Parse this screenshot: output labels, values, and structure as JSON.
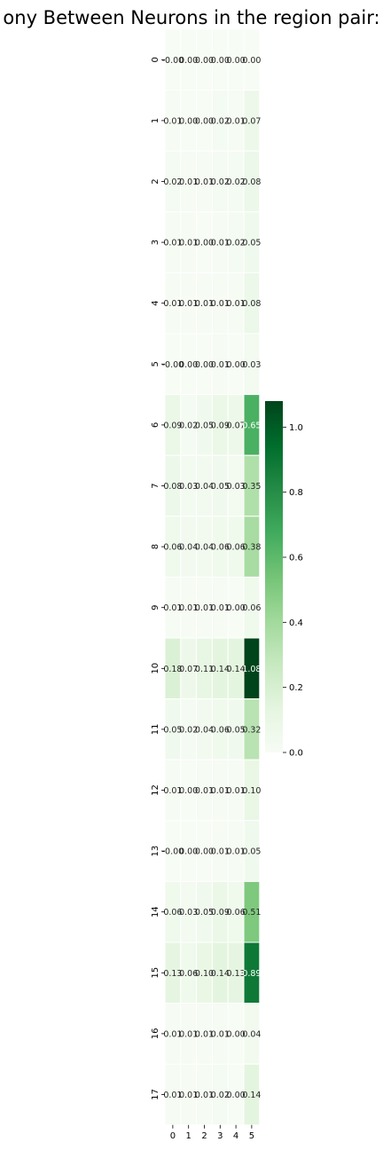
{
  "chart_data": {
    "type": "heatmap",
    "title": "ony Between Neurons in the region pair:",
    "xlabel": "",
    "ylabel": "",
    "x_categories": [
      "0",
      "1",
      "2",
      "3",
      "4",
      "5"
    ],
    "y_categories": [
      "0",
      "1",
      "2",
      "3",
      "4",
      "5",
      "6",
      "7",
      "8",
      "9",
      "10",
      "11",
      "12",
      "13",
      "14",
      "15",
      "16",
      "17"
    ],
    "values": [
      [
        0.0,
        0.0,
        0.0,
        0.0,
        0.0,
        0.0
      ],
      [
        0.01,
        0.0,
        0.0,
        0.02,
        0.01,
        0.07
      ],
      [
        0.02,
        0.01,
        0.01,
        0.02,
        0.02,
        0.08
      ],
      [
        0.01,
        0.01,
        0.0,
        0.01,
        0.02,
        0.05
      ],
      [
        0.01,
        0.01,
        0.01,
        0.01,
        0.01,
        0.08
      ],
      [
        0.0,
        0.0,
        0.0,
        0.01,
        0.0,
        0.03
      ],
      [
        0.09,
        0.02,
        0.05,
        0.09,
        0.07,
        0.65
      ],
      [
        0.08,
        0.03,
        0.04,
        0.05,
        0.03,
        0.35
      ],
      [
        0.06,
        0.04,
        0.04,
        0.06,
        0.06,
        0.38
      ],
      [
        0.01,
        0.01,
        0.01,
        0.01,
        0.0,
        0.06
      ],
      [
        0.18,
        0.07,
        0.11,
        0.14,
        0.14,
        1.08
      ],
      [
        0.05,
        0.02,
        0.04,
        0.06,
        0.05,
        0.32
      ],
      [
        0.01,
        0.0,
        0.01,
        0.01,
        0.01,
        0.1
      ],
      [
        0.0,
        0.0,
        0.0,
        0.01,
        0.01,
        0.05
      ],
      [
        0.06,
        0.03,
        0.05,
        0.09,
        0.06,
        0.51
      ],
      [
        0.13,
        0.06,
        0.1,
        0.14,
        0.13,
        0.89
      ],
      [
        0.01,
        0.01,
        0.01,
        0.01,
        0.0,
        0.04
      ],
      [
        0.01,
        0.01,
        0.01,
        0.02,
        0.0,
        0.14
      ]
    ],
    "value_labels": [
      [
        "-0.00",
        "0.00",
        "0.00",
        "0.00",
        "0.00",
        "0.00"
      ],
      [
        "0.01",
        "0.00",
        "0.00",
        "0.02",
        "0.01",
        "0.07"
      ],
      [
        "0.02",
        "0.01",
        "0.01",
        "0.02",
        "0.02",
        "0.08"
      ],
      [
        "0.01",
        "0.01",
        "0.00",
        "0.01",
        "0.02",
        "0.05"
      ],
      [
        "0.01",
        "0.01",
        "0.01",
        "0.01",
        "0.01",
        "0.08"
      ],
      [
        "-0.00",
        "0.00",
        "0.00",
        "0.01",
        "0.00",
        "0.03"
      ],
      [
        "0.09",
        "0.02",
        "0.05",
        "0.09",
        "0.07",
        "0.65"
      ],
      [
        "0.08",
        "0.03",
        "0.04",
        "0.05",
        "0.03",
        "0.35"
      ],
      [
        "0.06",
        "0.04",
        "0.04",
        "0.06",
        "0.06",
        "0.38"
      ],
      [
        "0.01",
        "0.01",
        "0.01",
        "0.01",
        "0.00",
        "0.06"
      ],
      [
        "0.18",
        "0.07",
        "0.11",
        "0.14",
        "0.14",
        "1.08"
      ],
      [
        "0.05",
        "0.02",
        "0.04",
        "0.06",
        "0.05",
        "0.32"
      ],
      [
        "0.01",
        "0.00",
        "0.01",
        "0.01",
        "0.01",
        "0.10"
      ],
      [
        "-0.00",
        "0.00",
        "0.00",
        "0.01",
        "0.01",
        "0.05"
      ],
      [
        "0.06",
        "0.03",
        "0.05",
        "0.09",
        "0.06",
        "0.51"
      ],
      [
        "0.13",
        "0.06",
        "0.10",
        "0.14",
        "0.13",
        "0.89"
      ],
      [
        "0.01",
        "0.01",
        "0.01",
        "0.01",
        "0.00",
        "0.04"
      ],
      [
        "0.01",
        "0.01",
        "0.01",
        "0.02",
        "0.00",
        "0.14"
      ]
    ],
    "colormap": "Greens",
    "color_range": [
      0.0,
      1.08
    ],
    "colorbar_ticks": [
      "0.0",
      "0.2",
      "0.4",
      "0.6",
      "0.8",
      "1.0"
    ],
    "colorbar_tick_values": [
      0.0,
      0.2,
      0.4,
      0.6,
      0.8,
      1.0
    ],
    "cell_border_color": "#ffffff",
    "grid": false,
    "legend": "colorbar-right"
  }
}
